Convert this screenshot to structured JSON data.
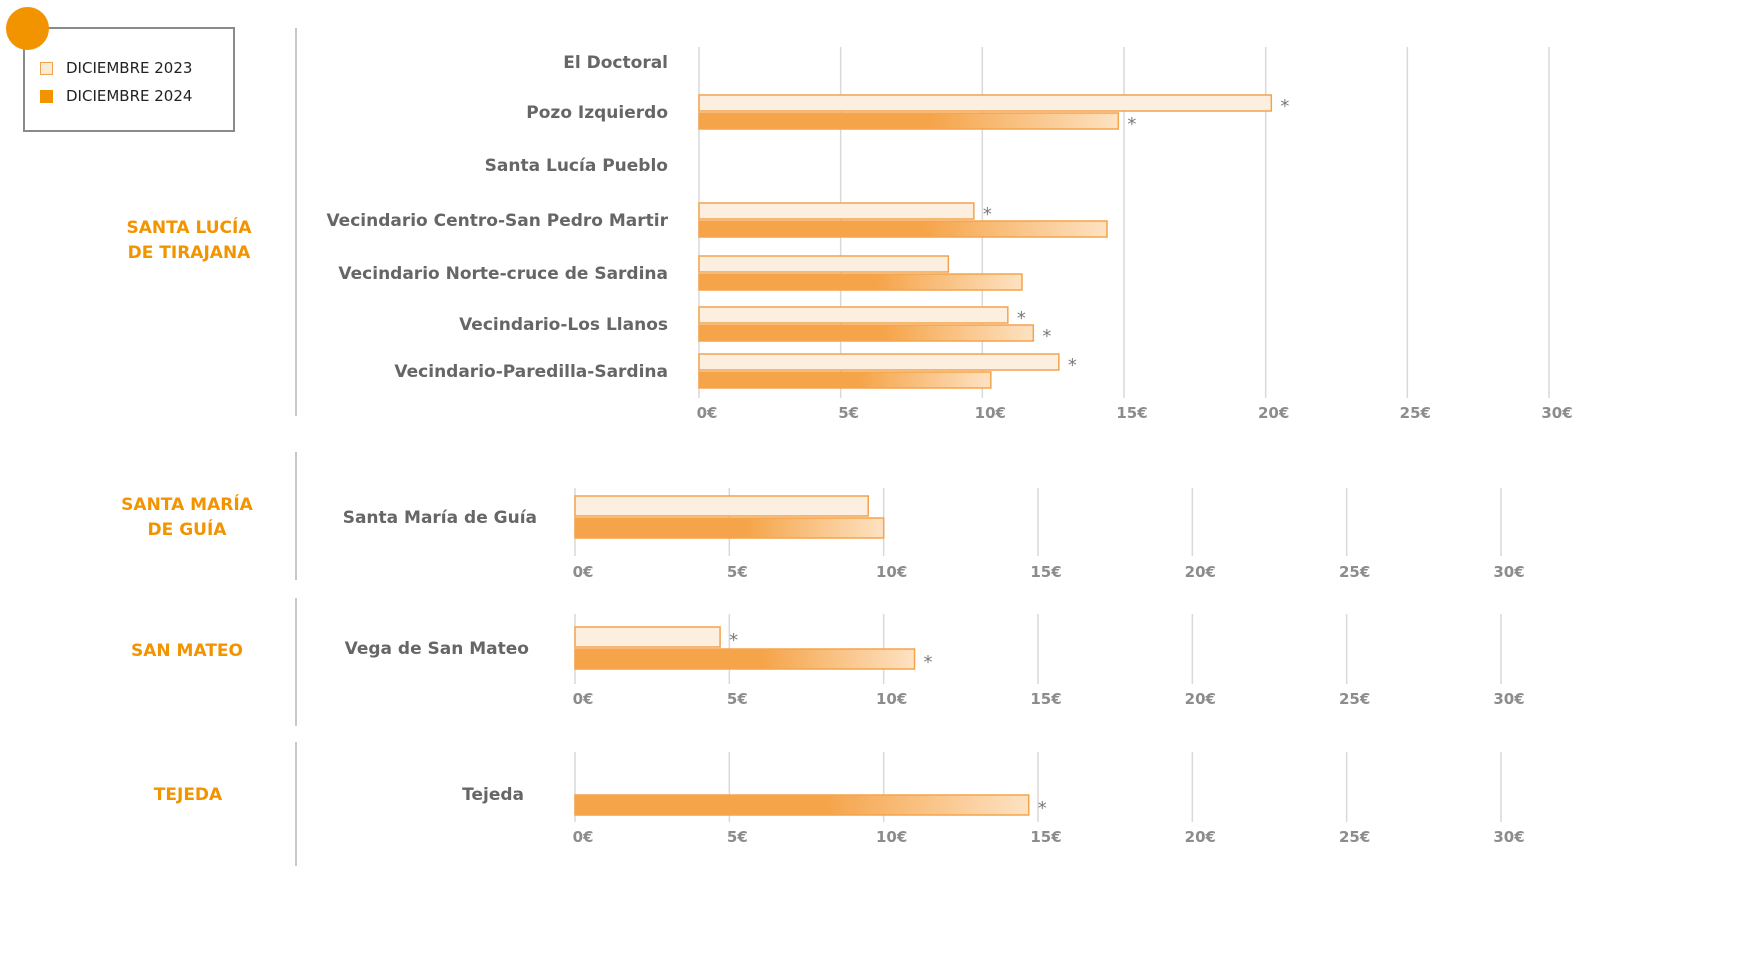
{
  "legend": {
    "items": [
      {
        "label": "DICIEMBRE 2023"
      },
      {
        "label": "DICIEMBRE 2024"
      }
    ]
  },
  "colors": {
    "accent": "#f29400",
    "bar_2024": "#f5a449",
    "bar_2023_fill": "#fdefdf",
    "bar_2023_border": "#f2a34d",
    "grid": "#d9d9d9",
    "tick_text": "#8c8c8c",
    "category_text": "#666666",
    "group_text": "#f29400"
  },
  "chart_data": [
    {
      "type": "bar",
      "orientation": "horizontal",
      "group": "SANTA LUCÍA DE TIRAJANA",
      "categories": [
        "El Doctoral",
        "Pozo Izquierdo",
        "Santa Lucía Pueblo",
        "Vecindario Centro-San Pedro Martir",
        "Vecindario Norte-cruce de Sardina",
        "Vecindario-Los Llanos",
        "Vecindario-Paredilla-Sardina"
      ],
      "series": [
        {
          "name": "DICIEMBRE 2023",
          "values": [
            null,
            20.2,
            null,
            9.7,
            8.8,
            10.9,
            12.7
          ],
          "marked": [
            false,
            true,
            false,
            true,
            false,
            true,
            true
          ]
        },
        {
          "name": "DICIEMBRE 2024",
          "values": [
            null,
            14.8,
            null,
            14.4,
            11.4,
            11.8,
            10.3
          ],
          "marked": [
            false,
            true,
            false,
            false,
            false,
            true,
            false
          ]
        }
      ],
      "xlim": [
        0,
        30
      ],
      "xticks": [
        "0€",
        "5€",
        "10€",
        "15€",
        "20€",
        "25€",
        "30€"
      ],
      "marker_symbol": "*"
    },
    {
      "type": "bar",
      "orientation": "horizontal",
      "group": "SANTA MARÍA DE GUÍA",
      "categories": [
        "Santa María de Guía"
      ],
      "series": [
        {
          "name": "DICIEMBRE 2023",
          "values": [
            9.5
          ],
          "marked": [
            false
          ]
        },
        {
          "name": "DICIEMBRE 2024",
          "values": [
            10.0
          ],
          "marked": [
            false
          ]
        }
      ],
      "xlim": [
        0,
        30
      ],
      "xticks": [
        "0€",
        "5€",
        "10€",
        "15€",
        "20€",
        "25€",
        "30€"
      ],
      "marker_symbol": "*"
    },
    {
      "type": "bar",
      "orientation": "horizontal",
      "group": "SAN MATEO",
      "categories": [
        "Vega de San Mateo"
      ],
      "series": [
        {
          "name": "DICIEMBRE 2023",
          "values": [
            4.7
          ],
          "marked": [
            true
          ]
        },
        {
          "name": "DICIEMBRE 2024",
          "values": [
            11.0
          ],
          "marked": [
            true
          ]
        }
      ],
      "xlim": [
        0,
        30
      ],
      "xticks": [
        "0€",
        "5€",
        "10€",
        "15€",
        "20€",
        "25€",
        "30€"
      ],
      "marker_symbol": "*"
    },
    {
      "type": "bar",
      "orientation": "horizontal",
      "group": "TEJEDA",
      "categories": [
        "Tejeda"
      ],
      "series": [
        {
          "name": "DICIEMBRE 2023",
          "values": [
            null
          ],
          "marked": [
            false
          ]
        },
        {
          "name": "DICIEMBRE 2024",
          "values": [
            14.7
          ],
          "marked": [
            true
          ]
        }
      ],
      "xlim": [
        0,
        30
      ],
      "xticks": [
        "0€",
        "5€",
        "10€",
        "15€",
        "20€",
        "25€",
        "30€"
      ],
      "marker_symbol": "*"
    }
  ]
}
